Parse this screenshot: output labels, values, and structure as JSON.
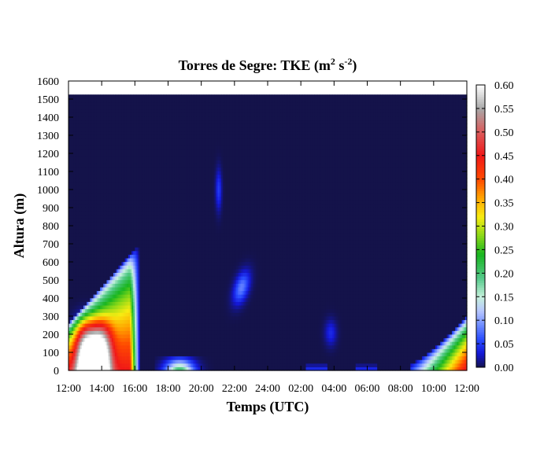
{
  "chart_data": {
    "type": "heatmap",
    "title": "Torres de Segre: TKE (m",
    "title_units": {
      "sup1": "2",
      "mid": " s",
      "sup2": "-2",
      "close": ")"
    },
    "xlabel": "Temps (UTC)",
    "ylabel": "Altura (m)",
    "x_ticks": [
      "12:00",
      "14:00",
      "16:00",
      "18:00",
      "20:00",
      "22:00",
      "24:00",
      "02:00",
      "04:00",
      "06:00",
      "08:00",
      "10:00",
      "12:00"
    ],
    "x_range_hours": [
      0,
      24
    ],
    "y_ticks": [
      0,
      100,
      200,
      300,
      400,
      500,
      600,
      700,
      800,
      900,
      1000,
      1100,
      1200,
      1300,
      1400,
      1500,
      1600
    ],
    "ylim": [
      0,
      1600
    ],
    "data_top_height": 1525,
    "colorbar": {
      "ticks": [
        "0.00",
        "0.05",
        "0.10",
        "0.15",
        "0.20",
        "0.25",
        "0.30",
        "0.35",
        "0.40",
        "0.45",
        "0.50",
        "0.55",
        "0.60"
      ],
      "range": [
        0,
        0.6
      ],
      "colors": [
        {
          "v": 0.0,
          "c": "#14134a"
        },
        {
          "v": 0.03,
          "c": "#1418d8"
        },
        {
          "v": 0.06,
          "c": "#2a4dff"
        },
        {
          "v": 0.09,
          "c": "#6f8cff"
        },
        {
          "v": 0.12,
          "c": "#b7c6ff"
        },
        {
          "v": 0.15,
          "c": "#c7f2dd"
        },
        {
          "v": 0.19,
          "c": "#54c98a"
        },
        {
          "v": 0.24,
          "c": "#18b520"
        },
        {
          "v": 0.28,
          "c": "#8ad818"
        },
        {
          "v": 0.32,
          "c": "#f7ec12"
        },
        {
          "v": 0.36,
          "c": "#ffa500"
        },
        {
          "v": 0.4,
          "c": "#ff4a00"
        },
        {
          "v": 0.45,
          "c": "#f01818"
        },
        {
          "v": 0.5,
          "c": "#dc5a5a"
        },
        {
          "v": 0.55,
          "c": "#a8a8a8"
        },
        {
          "v": 0.6,
          "c": "#ffffff"
        }
      ]
    },
    "features": [
      {
        "name": "convective-boundary-layer",
        "hours": [
          0,
          4.2
        ],
        "max_height": 700,
        "peak": 0.6
      },
      {
        "name": "evening-surface",
        "hours": [
          5.5,
          8.3
        ],
        "max_height": 80,
        "peak": 0.22
      },
      {
        "name": "night-aloft-blob",
        "hours": [
          9.5,
          11.2
        ],
        "heights": [
          350,
          560
        ],
        "peak": 0.08
      },
      {
        "name": "night-aloft-streak",
        "hours": [
          8.8,
          9.3
        ],
        "heights": [
          900,
          1100
        ],
        "peak": 0.05
      },
      {
        "name": "morning-growth",
        "hours": [
          21.0,
          24
        ],
        "max_height": 300,
        "peak": 0.45
      }
    ]
  }
}
